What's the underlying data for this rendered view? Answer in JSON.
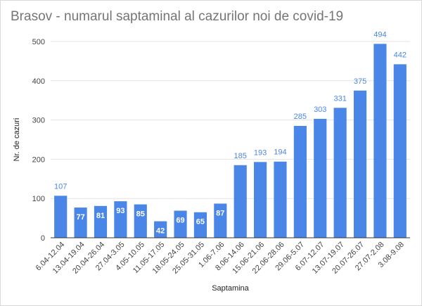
{
  "chart_data": {
    "type": "bar",
    "title": "Brasov - numarul saptaminal al cazurilor noi de covid-19",
    "xlabel": "Saptamina",
    "ylabel": "Nr. de cazuri",
    "categories": [
      "6.04-12.04",
      "13.04-19.04",
      "20.04-26.04",
      "27.04-3.05",
      "4.05-10.05",
      "11.05-17.05",
      "18.05-24.05",
      "25.05-31.05",
      "1.06-7.06",
      "8.06-14.06",
      "15.06-21.06",
      "22.06-28.06",
      "29.06-5.07",
      "6.07-12.07",
      "13.07-19.07",
      "20.07-26.07",
      "27.07-2.08",
      "3.08-9.08"
    ],
    "values": [
      107,
      77,
      81,
      93,
      85,
      42,
      69,
      65,
      87,
      185,
      193,
      194,
      285,
      303,
      331,
      375,
      494,
      442
    ],
    "ylim": [
      0,
      500
    ],
    "yticks": [
      0,
      100,
      200,
      300,
      400,
      500
    ],
    "grid": true,
    "legend": "none",
    "colors": {
      "bar": "#4a86e8",
      "label_outside": "#4a86e8",
      "label_inside": "#ffffff",
      "grid": "#e3e3e3",
      "title": "#757575"
    }
  }
}
